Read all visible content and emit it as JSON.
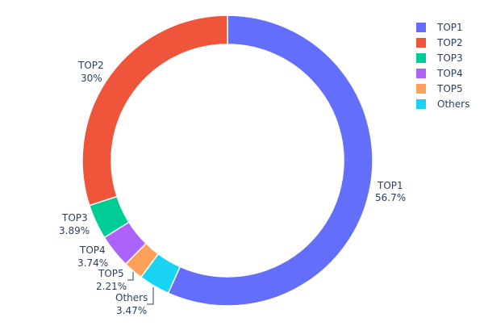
{
  "chart_data": {
    "type": "pie",
    "hole": true,
    "categories": [
      "TOP1",
      "TOP2",
      "TOP3",
      "TOP4",
      "TOP5",
      "Others"
    ],
    "values": [
      56.7,
      30,
      3.89,
      3.74,
      2.21,
      3.47
    ],
    "labels_text": [
      "56.7%",
      "30%",
      "3.89%",
      "3.74%",
      "2.21%",
      "3.47%"
    ],
    "colors": [
      "#636efa",
      "#ef553b",
      "#00cc96",
      "#ab63fa",
      "#ffa15a",
      "#19d3f3"
    ],
    "legend": [
      "TOP1",
      "TOP2",
      "TOP3",
      "TOP4",
      "TOP5",
      "Others"
    ],
    "legend_position": "top-right",
    "direction": "clockwise",
    "clockwise_order": [
      "TOP1",
      "Others",
      "TOP5",
      "TOP4",
      "TOP3",
      "TOP2"
    ]
  }
}
